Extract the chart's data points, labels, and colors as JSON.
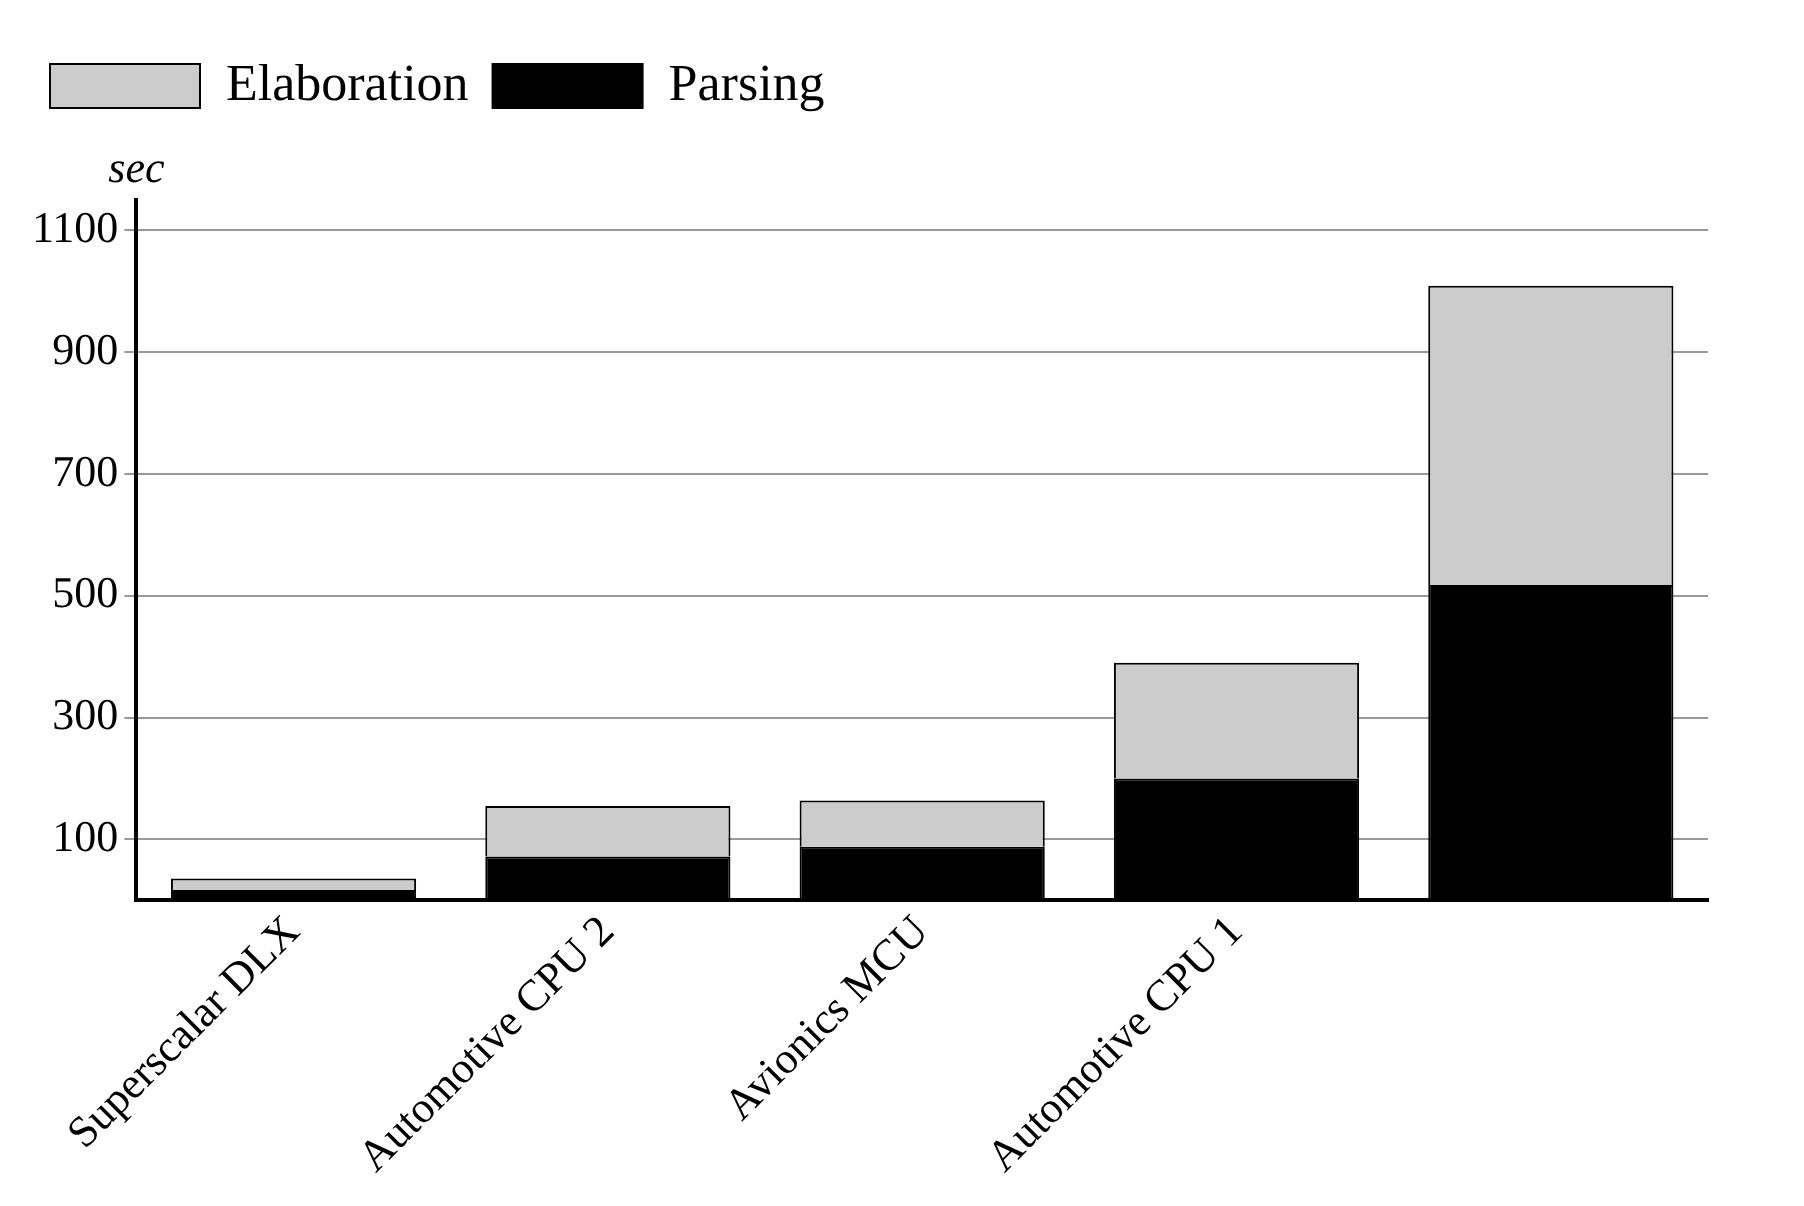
{
  "chart_data": {
    "type": "bar",
    "stacked": true,
    "ylabel": "sec",
    "categories": [
      "Superscalar DLX",
      "Automotive CPU 2",
      "Avionics MCU",
      "Automotive CPU 1",
      null
    ],
    "series": [
      {
        "name": "Parsing",
        "color": "#000000",
        "values": [
          17,
          72,
          88,
          200,
          518
        ]
      },
      {
        "name": "Elaboration",
        "color": "#cccccc",
        "values": [
          19,
          83,
          76,
          190,
          491
        ]
      }
    ],
    "ylim": [
      0,
      1150
    ],
    "yticks": [
      100,
      300,
      500,
      700,
      900,
      1100
    ],
    "grid": "y",
    "legend": "top left"
  }
}
